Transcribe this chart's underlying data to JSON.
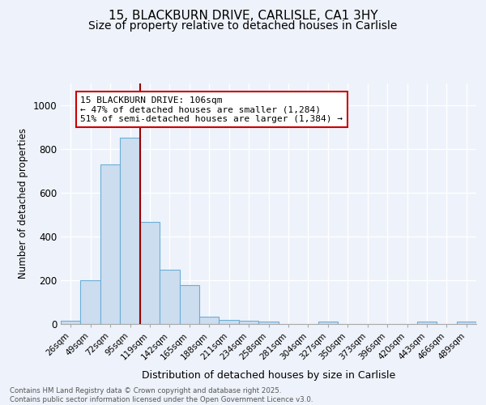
{
  "title1": "15, BLACKBURN DRIVE, CARLISLE, CA1 3HY",
  "title2": "Size of property relative to detached houses in Carlisle",
  "xlabel": "Distribution of detached houses by size in Carlisle",
  "ylabel": "Number of detached properties",
  "bin_labels": [
    "26sqm",
    "49sqm",
    "72sqm",
    "95sqm",
    "119sqm",
    "142sqm",
    "165sqm",
    "188sqm",
    "211sqm",
    "234sqm",
    "258sqm",
    "281sqm",
    "304sqm",
    "327sqm",
    "350sqm",
    "373sqm",
    "396sqm",
    "420sqm",
    "443sqm",
    "466sqm",
    "489sqm"
  ],
  "bar_values": [
    15,
    200,
    730,
    850,
    465,
    248,
    178,
    35,
    20,
    15,
    10,
    0,
    0,
    10,
    0,
    0,
    0,
    0,
    10,
    0,
    10
  ],
  "bar_color": "#ccddf0",
  "bar_edge_color": "#6baed6",
  "vline_color": "#990000",
  "annotation_text": "15 BLACKBURN DRIVE: 106sqm\n← 47% of detached houses are smaller (1,284)\n51% of semi-detached houses are larger (1,384) →",
  "annotation_box_color": "#ffffff",
  "annotation_box_edge": "#cc0000",
  "ylim": [
    0,
    1100
  ],
  "yticks": [
    0,
    200,
    400,
    600,
    800,
    1000
  ],
  "footer": "Contains HM Land Registry data © Crown copyright and database right 2025.\nContains public sector information licensed under the Open Government Licence v3.0.",
  "bg_color": "#eef2fa",
  "grid_color": "#ffffff",
  "title1_fontsize": 11,
  "title2_fontsize": 10
}
